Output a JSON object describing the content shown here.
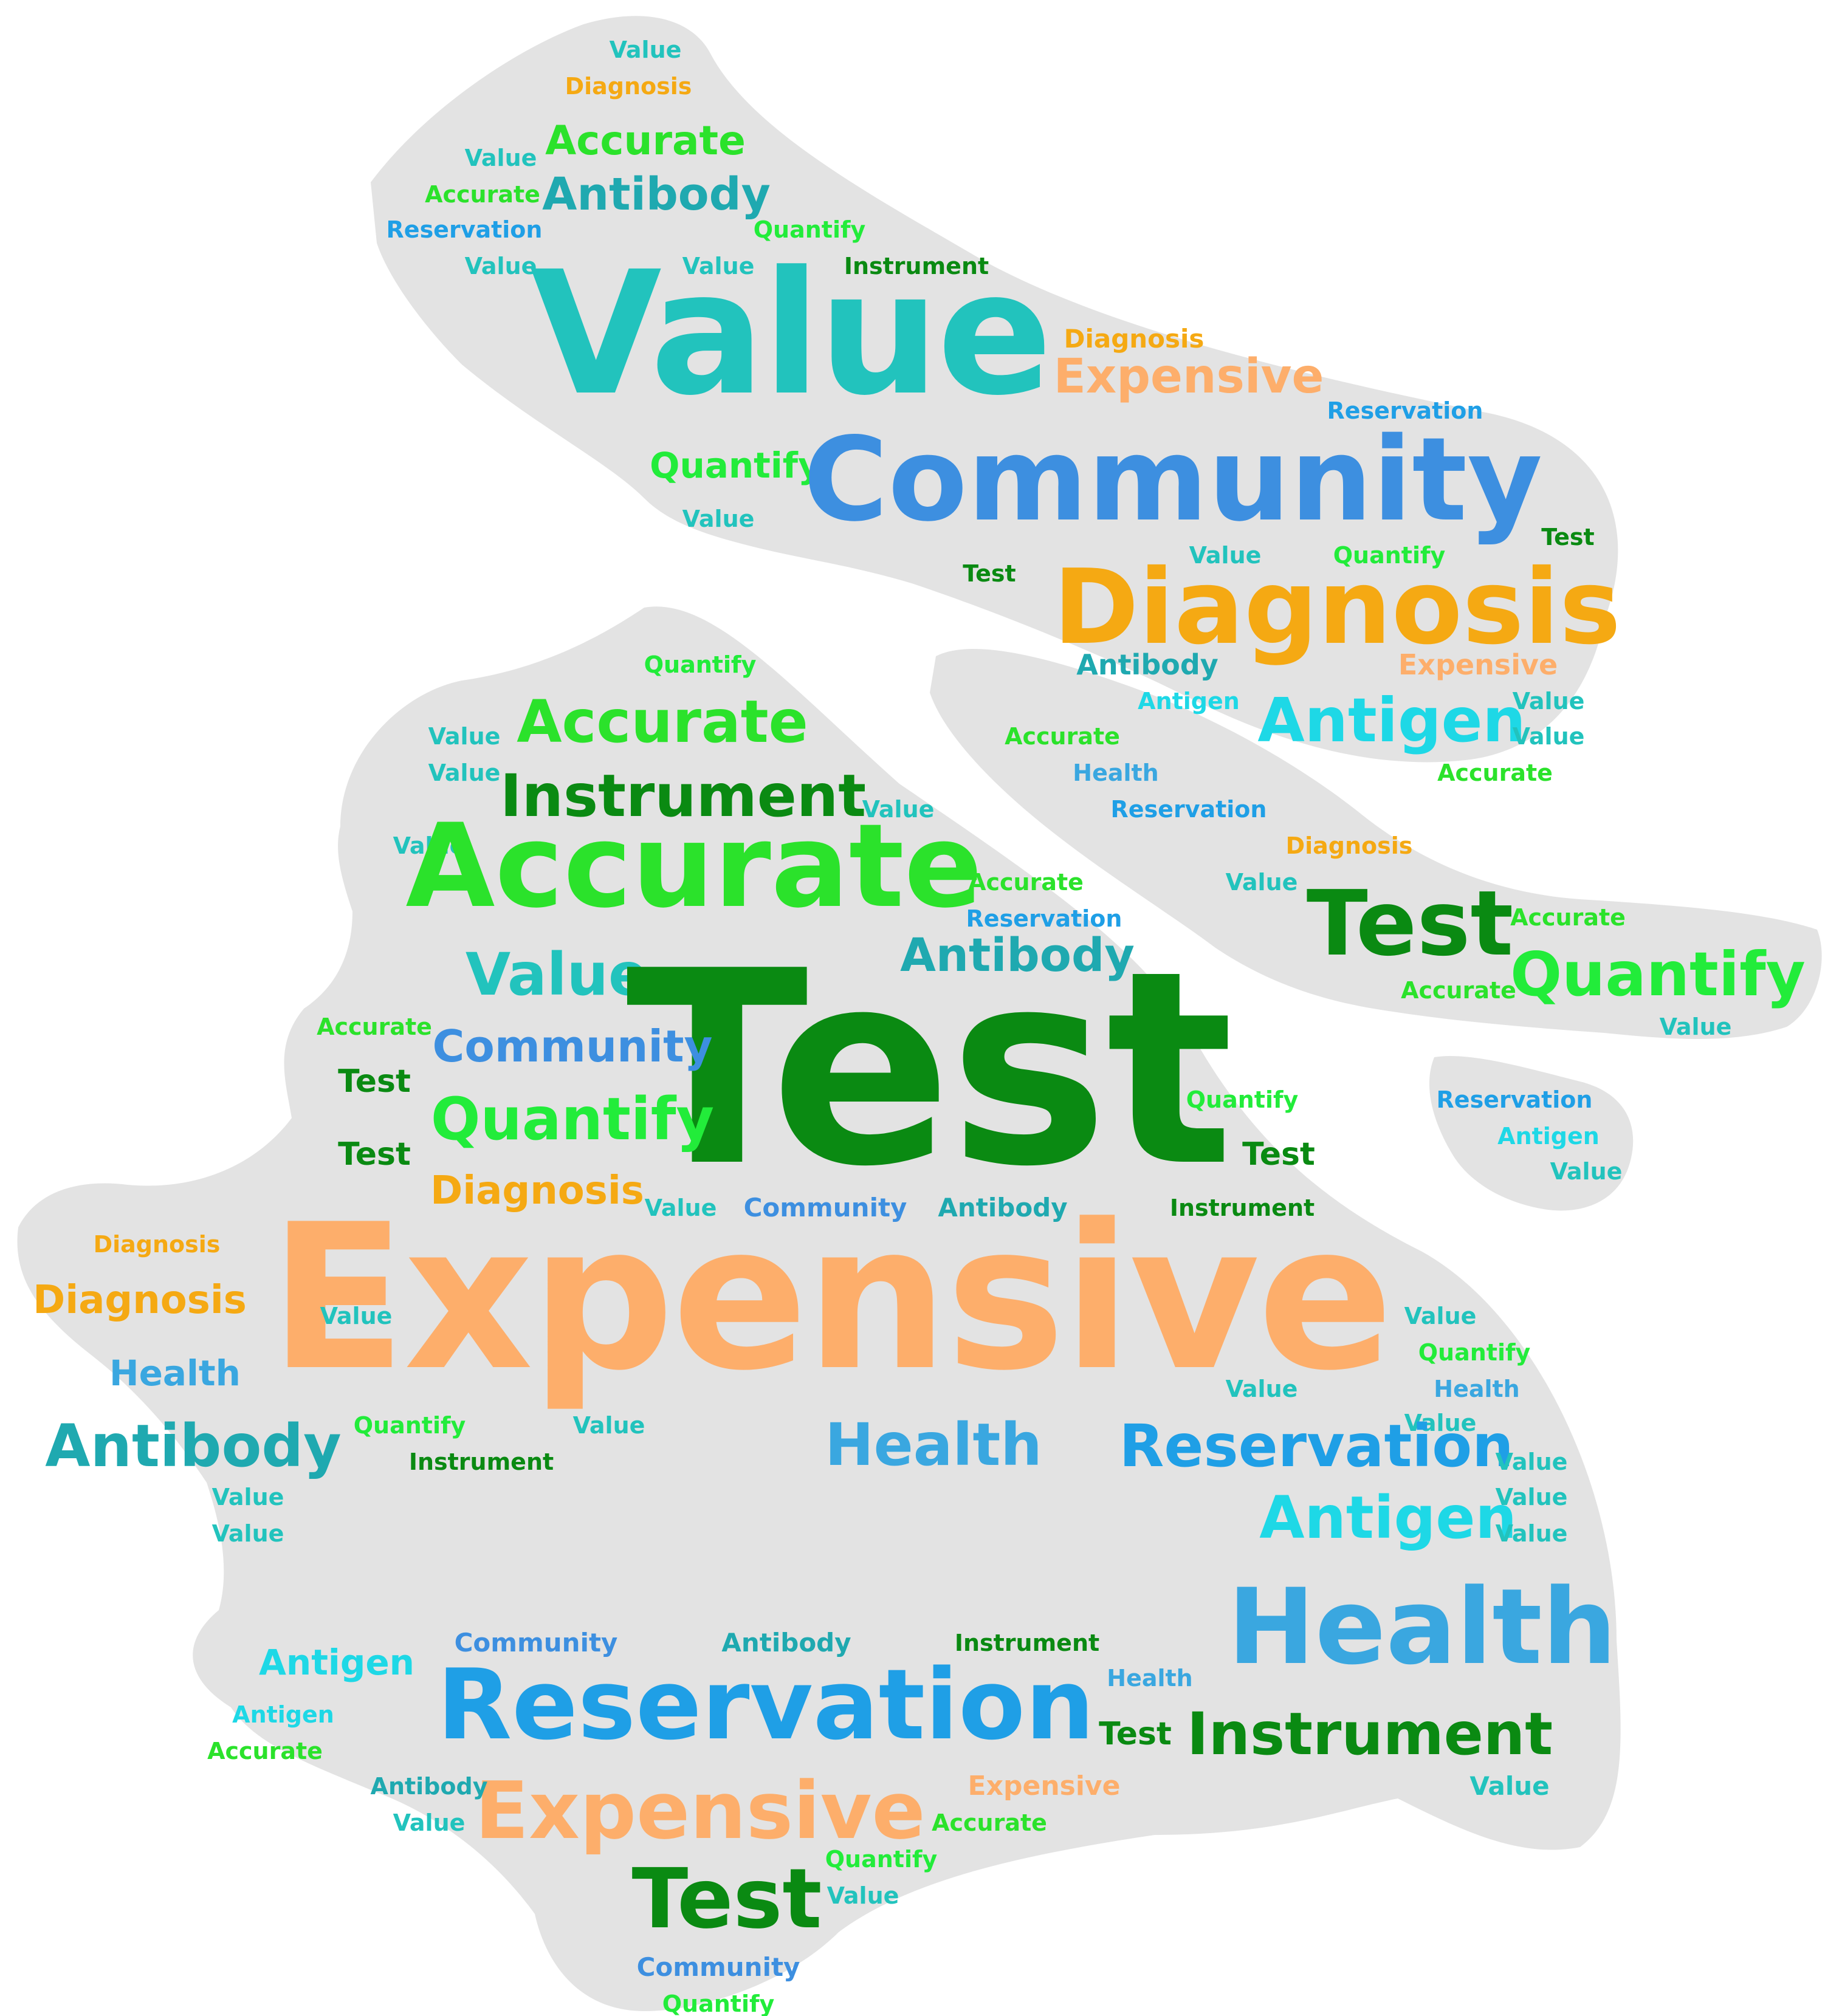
{
  "palette": {
    "background": "#ffffff",
    "shape_fill": "#e3e3e3",
    "teal": "#22c3bd",
    "dark_teal": "#1fa9b0",
    "blue": "#3d8fe0",
    "sky_blue": "#1f9fe6",
    "light_blue": "#3aa7e0",
    "cyan": "#1ed8e6",
    "green": "#2be22b",
    "dark_green": "#0a8a12",
    "bright_green": "#22ec3a",
    "orange": "#f5a913",
    "peach": "#fdae6b"
  },
  "words": [
    {
      "text": "Value",
      "color": "teal"
    },
    {
      "text": "Diagnosis",
      "color": "orange"
    },
    {
      "text": "Accurate",
      "color": "green"
    },
    {
      "text": "Value",
      "color": "teal"
    },
    {
      "text": "Antibody",
      "color": "dark_teal"
    },
    {
      "text": "Accurate",
      "color": "green"
    },
    {
      "text": "Reservation",
      "color": "sky_blue"
    },
    {
      "text": "Quantify",
      "color": "bright_green"
    },
    {
      "text": "Value",
      "color": "teal"
    },
    {
      "text": "Value",
      "color": "teal"
    },
    {
      "text": "Instrument",
      "color": "dark_green"
    },
    {
      "text": "Value",
      "color": "teal"
    },
    {
      "text": "Diagnosis",
      "color": "orange"
    },
    {
      "text": "Expensive",
      "color": "peach"
    },
    {
      "text": "Reservation",
      "color": "sky_blue"
    },
    {
      "text": "Quantify",
      "color": "bright_green"
    },
    {
      "text": "Community",
      "color": "blue"
    },
    {
      "text": "Value",
      "color": "teal"
    },
    {
      "text": "Test",
      "color": "dark_green"
    },
    {
      "text": "Test",
      "color": "dark_green"
    },
    {
      "text": "Value",
      "color": "teal"
    },
    {
      "text": "Quantify",
      "color": "bright_green"
    },
    {
      "text": "Diagnosis",
      "color": "orange"
    },
    {
      "text": "Antibody",
      "color": "dark_teal"
    },
    {
      "text": "Expensive",
      "color": "peach"
    },
    {
      "text": "Quantify",
      "color": "bright_green"
    },
    {
      "text": "Antigen",
      "color": "cyan"
    },
    {
      "text": "Antigen",
      "color": "cyan"
    },
    {
      "text": "Value",
      "color": "teal"
    },
    {
      "text": "Value",
      "color": "teal"
    },
    {
      "text": "Accurate",
      "color": "green"
    },
    {
      "text": "Accurate",
      "color": "green"
    },
    {
      "text": "Health",
      "color": "light_blue"
    },
    {
      "text": "Reservation",
      "color": "sky_blue"
    },
    {
      "text": "Diagnosis",
      "color": "orange"
    },
    {
      "text": "Value",
      "color": "teal"
    },
    {
      "text": "Test",
      "color": "dark_green"
    },
    {
      "text": "Accurate",
      "color": "green"
    },
    {
      "text": "Quantify",
      "color": "bright_green"
    },
    {
      "text": "Accurate",
      "color": "green"
    },
    {
      "text": "Value",
      "color": "teal"
    },
    {
      "text": "Reservation",
      "color": "sky_blue"
    },
    {
      "text": "Antigen",
      "color": "cyan"
    },
    {
      "text": "Value",
      "color": "teal"
    },
    {
      "text": "Quantify",
      "color": "bright_green"
    },
    {
      "text": "Value",
      "color": "teal"
    },
    {
      "text": "Accurate",
      "color": "green"
    },
    {
      "text": "Value",
      "color": "teal"
    },
    {
      "text": "Instrument",
      "color": "dark_green"
    },
    {
      "text": "Value",
      "color": "teal"
    },
    {
      "text": "Value",
      "color": "teal"
    },
    {
      "text": "Accurate",
      "color": "green"
    },
    {
      "text": "Accurate",
      "color": "green"
    },
    {
      "text": "Reservation",
      "color": "sky_blue"
    },
    {
      "text": "Antibody",
      "color": "dark_teal"
    },
    {
      "text": "Value",
      "color": "teal"
    },
    {
      "text": "Test",
      "color": "dark_green"
    },
    {
      "text": "Accurate",
      "color": "green"
    },
    {
      "text": "Community",
      "color": "blue"
    },
    {
      "text": "Test",
      "color": "dark_green"
    },
    {
      "text": "Quantify",
      "color": "bright_green"
    },
    {
      "text": "Quantify",
      "color": "bright_green"
    },
    {
      "text": "Test",
      "color": "dark_green"
    },
    {
      "text": "Test",
      "color": "dark_green"
    },
    {
      "text": "Diagnosis",
      "color": "orange"
    },
    {
      "text": "Value",
      "color": "teal"
    },
    {
      "text": "Community",
      "color": "blue"
    },
    {
      "text": "Antibody",
      "color": "dark_teal"
    },
    {
      "text": "Instrument",
      "color": "dark_green"
    },
    {
      "text": "Diagnosis",
      "color": "orange"
    },
    {
      "text": "Expensive",
      "color": "peach"
    },
    {
      "text": "Diagnosis",
      "color": "orange"
    },
    {
      "text": "Value",
      "color": "teal"
    },
    {
      "text": "Value",
      "color": "teal"
    },
    {
      "text": "Quantify",
      "color": "bright_green"
    },
    {
      "text": "Health",
      "color": "light_blue"
    },
    {
      "text": "Value",
      "color": "teal"
    },
    {
      "text": "Health",
      "color": "light_blue"
    },
    {
      "text": "Value",
      "color": "teal"
    },
    {
      "text": "Quantify",
      "color": "bright_green"
    },
    {
      "text": "Value",
      "color": "teal"
    },
    {
      "text": "Health",
      "color": "light_blue"
    },
    {
      "text": "Reservation",
      "color": "sky_blue"
    },
    {
      "text": "Instrument",
      "color": "dark_green"
    },
    {
      "text": "Value",
      "color": "teal"
    },
    {
      "text": "Antibody",
      "color": "dark_teal"
    },
    {
      "text": "Value",
      "color": "teal"
    },
    {
      "text": "Antigen",
      "color": "cyan"
    },
    {
      "text": "Value",
      "color": "teal"
    },
    {
      "text": "Value",
      "color": "teal"
    },
    {
      "text": "Value",
      "color": "teal"
    },
    {
      "text": "Health",
      "color": "light_blue"
    },
    {
      "text": "Community",
      "color": "blue"
    },
    {
      "text": "Antibody",
      "color": "dark_teal"
    },
    {
      "text": "Instrument",
      "color": "dark_green"
    },
    {
      "text": "Antigen",
      "color": "cyan"
    },
    {
      "text": "Reservation",
      "color": "sky_blue"
    },
    {
      "text": "Health",
      "color": "light_blue"
    },
    {
      "text": "Antigen",
      "color": "cyan"
    },
    {
      "text": "Test",
      "color": "dark_green"
    },
    {
      "text": "Instrument",
      "color": "dark_green"
    },
    {
      "text": "Accurate",
      "color": "green"
    },
    {
      "text": "Value",
      "color": "teal"
    },
    {
      "text": "Expensive",
      "color": "peach"
    },
    {
      "text": "Expensive",
      "color": "peach"
    },
    {
      "text": "Antibody",
      "color": "dark_teal"
    },
    {
      "text": "Value",
      "color": "teal"
    },
    {
      "text": "Accurate",
      "color": "green"
    },
    {
      "text": "Quantify",
      "color": "bright_green"
    },
    {
      "text": "Test",
      "color": "dark_green"
    },
    {
      "text": "Value",
      "color": "teal"
    },
    {
      "text": "Community",
      "color": "blue"
    },
    {
      "text": "Quantify",
      "color": "bright_green"
    }
  ]
}
